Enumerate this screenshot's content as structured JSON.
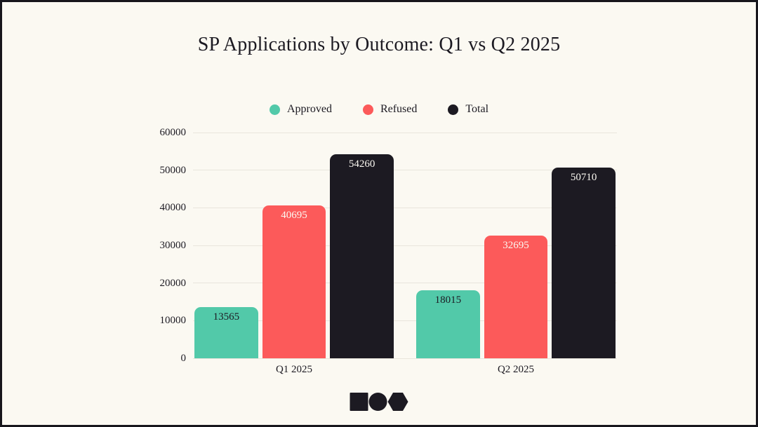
{
  "page": {
    "background_color": "#fbf9f2",
    "border_color": "#17161c",
    "gridline_color": "#e9e5dc",
    "text_color": "#1c1a22"
  },
  "title": "SP Applications by Outcome: Q1 vs Q2 2025",
  "legend": {
    "position": "top-center",
    "items": [
      {
        "label": "Approved",
        "color": "#52c9a9"
      },
      {
        "label": "Refused",
        "color": "#fc5a5a"
      },
      {
        "label": "Total",
        "color": "#1c1a22"
      }
    ]
  },
  "chart_data": {
    "type": "bar",
    "title": "SP Applications by Outcome: Q1 vs Q2 2025",
    "categories": [
      "Q1 2025",
      "Q2 2025"
    ],
    "series": [
      {
        "name": "Approved",
        "color": "#52c9a9",
        "label_color": "#1c1a22",
        "values": [
          13565,
          18015
        ]
      },
      {
        "name": "Refused",
        "color": "#fc5a5a",
        "label_color": "#fbf9f2",
        "values": [
          40695,
          32695
        ]
      },
      {
        "name": "Total",
        "color": "#1c1a22",
        "label_color": "#fbf9f2",
        "values": [
          54260,
          50710
        ]
      }
    ],
    "ylim": [
      0,
      60000
    ],
    "yticks": [
      "0",
      "10000",
      "20000",
      "30000",
      "40000",
      "50000",
      "60000"
    ],
    "ytick_values": [
      0,
      10000,
      20000,
      30000,
      40000,
      50000,
      60000
    ],
    "grid": true,
    "legend_position": "top",
    "xlabel": "",
    "ylabel": "",
    "bar_corner": "rounded-top",
    "value_labels": "inside-top"
  },
  "logo": {
    "color": "#1c1a22",
    "shapes": [
      "square",
      "circle",
      "hexagon"
    ]
  }
}
